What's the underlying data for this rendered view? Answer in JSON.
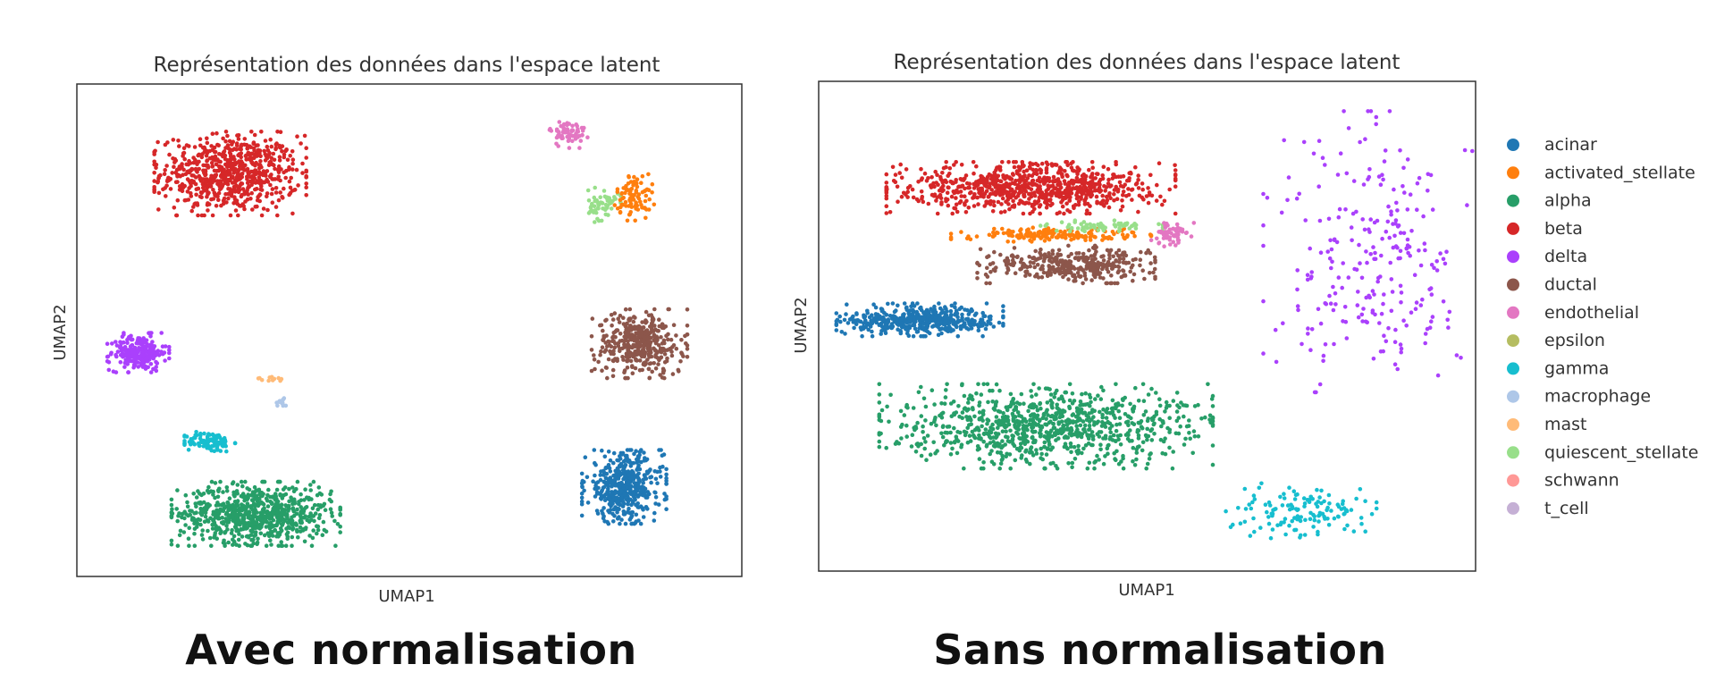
{
  "captions": {
    "left": "Avec normalisation",
    "right": "Sans normalisation"
  },
  "chart_data": [
    {
      "type": "scatter",
      "title": "Représentation des données dans l'espace latent",
      "xlabel": "UMAP1",
      "ylabel": "UMAP2",
      "grid": false,
      "legend": "none",
      "clusters": [
        {
          "label": "beta",
          "center": [
            3.0,
            9.0
          ],
          "spread": [
            1.35,
            0.85
          ],
          "n": 700
        },
        {
          "label": "delta",
          "center": [
            1.2,
            5.0
          ],
          "spread": [
            0.55,
            0.4
          ],
          "n": 220
        },
        {
          "label": "gamma",
          "center": [
            2.6,
            3.0
          ],
          "spread": [
            0.45,
            0.22
          ],
          "n": 110
        },
        {
          "label": "alpha",
          "center": [
            3.5,
            1.4
          ],
          "spread": [
            1.5,
            0.65
          ],
          "n": 750
        },
        {
          "label": "mast",
          "center": [
            3.8,
            4.4
          ],
          "spread": [
            0.25,
            0.05
          ],
          "n": 12
        },
        {
          "label": "macrophage",
          "center": [
            4.0,
            3.9
          ],
          "spread": [
            0.12,
            0.1
          ],
          "n": 15
        },
        {
          "label": "endothelial",
          "center": [
            9.6,
            9.9
          ],
          "spread": [
            0.35,
            0.3
          ],
          "n": 70
        },
        {
          "label": "quiescent_stellate",
          "center": [
            10.3,
            8.3
          ],
          "spread": [
            0.3,
            0.35
          ],
          "n": 60
        },
        {
          "label": "activated_stellate",
          "center": [
            10.9,
            8.5
          ],
          "spread": [
            0.35,
            0.5
          ],
          "n": 90
        },
        {
          "label": "ductal",
          "center": [
            11.0,
            5.2
          ],
          "spread": [
            0.85,
            0.7
          ],
          "n": 400
        },
        {
          "label": "acinar",
          "center": [
            10.7,
            2.0
          ],
          "spread": [
            0.75,
            0.75
          ],
          "n": 450
        }
      ]
    },
    {
      "type": "scatter",
      "title": "Représentation des données dans l'espace latent",
      "xlabel": "UMAP1",
      "ylabel": "UMAP2",
      "grid": false,
      "legend": "right",
      "legend_entries": [
        "acinar",
        "activated_stellate",
        "alpha",
        "beta",
        "delta",
        "ductal",
        "endothelial",
        "epsilon",
        "gamma",
        "macrophage",
        "mast",
        "quiescent_stellate",
        "schwann",
        "t_cell"
      ],
      "clusters": [
        {
          "label": "beta",
          "center": [
            4.2,
            8.0
          ],
          "spread": [
            2.6,
            0.55
          ],
          "n": 800
        },
        {
          "label": "activated_stellate",
          "center": [
            4.6,
            6.9
          ],
          "spread": [
            1.8,
            0.15
          ],
          "n": 160
        },
        {
          "label": "quiescent_stellate",
          "center": [
            5.6,
            7.1
          ],
          "spread": [
            1.1,
            0.12
          ],
          "n": 60
        },
        {
          "label": "ductal",
          "center": [
            4.9,
            6.2
          ],
          "spread": [
            1.6,
            0.4
          ],
          "n": 350
        },
        {
          "label": "endothelial",
          "center": [
            7.0,
            6.9
          ],
          "spread": [
            0.4,
            0.25
          ],
          "n": 60
        },
        {
          "label": "acinar",
          "center": [
            2.0,
            4.9
          ],
          "spread": [
            1.5,
            0.35
          ],
          "n": 450
        },
        {
          "label": "alpha",
          "center": [
            4.5,
            2.4
          ],
          "spread": [
            3.0,
            0.9
          ],
          "n": 900
        },
        {
          "label": "gamma",
          "center": [
            9.5,
            0.4
          ],
          "spread": [
            1.4,
            0.6
          ],
          "n": 140
        },
        {
          "label": "delta",
          "center": [
            11.0,
            6.5
          ],
          "spread": [
            2.0,
            3.0
          ],
          "n": 260
        }
      ]
    }
  ],
  "colors": {
    "acinar": "#1f77b4",
    "activated_stellate": "#ff7f0e",
    "alpha": "#279e68",
    "beta": "#d62728",
    "delta": "#aa40fc",
    "ductal": "#8c564b",
    "endothelial": "#e377c2",
    "epsilon": "#b5bd61",
    "gamma": "#17becf",
    "macrophage": "#aec7e8",
    "mast": "#ffbb78",
    "quiescent_stellate": "#98df8a",
    "schwann": "#ff9896",
    "t_cell": "#c5b0d5"
  }
}
